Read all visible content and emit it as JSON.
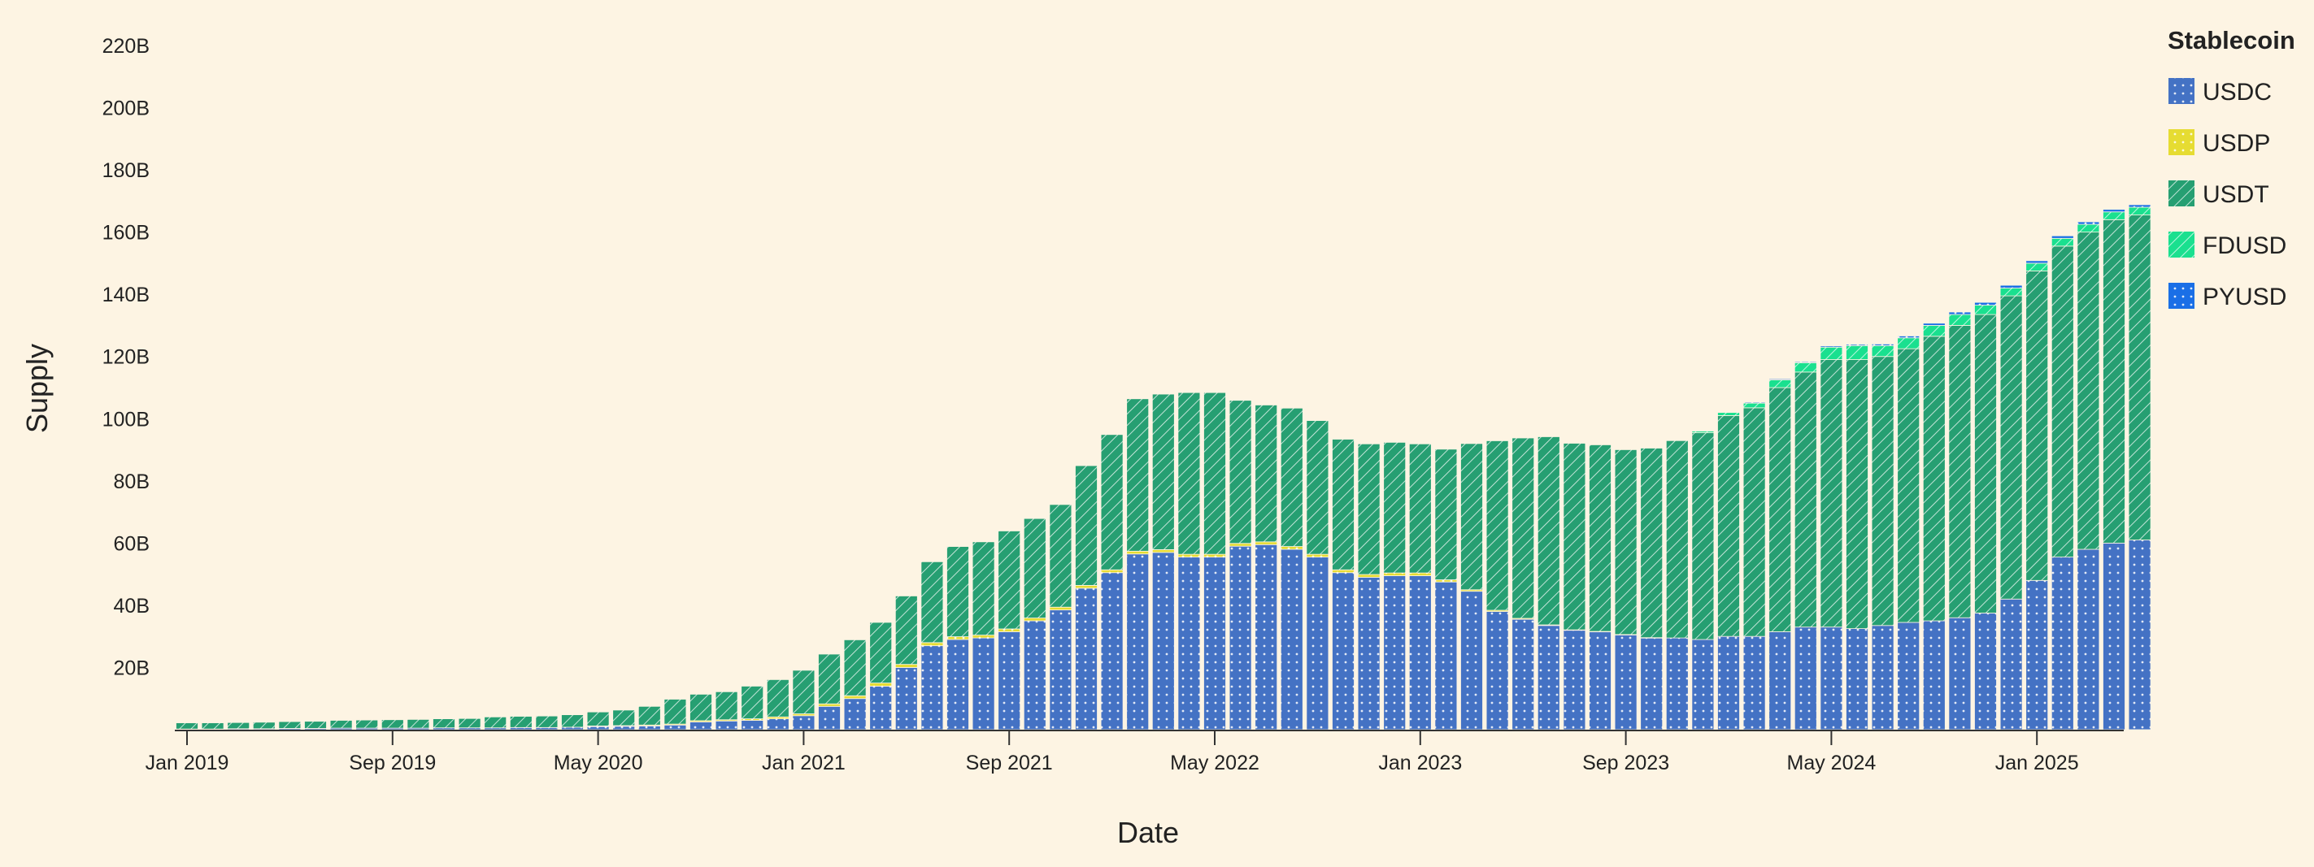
{
  "chart_data": {
    "type": "bar",
    "stacked": true,
    "xlabel": "Date",
    "ylabel": "Supply",
    "ylim": [
      0,
      220
    ],
    "y_ticks": [
      {
        "value": 20,
        "label": "20B"
      },
      {
        "value": 40,
        "label": "40B"
      },
      {
        "value": 60,
        "label": "60B"
      },
      {
        "value": 80,
        "label": "80B"
      },
      {
        "value": 100,
        "label": "100B"
      },
      {
        "value": 120,
        "label": "120B"
      },
      {
        "value": 140,
        "label": "140B"
      },
      {
        "value": 160,
        "label": "160B"
      },
      {
        "value": 180,
        "label": "180B"
      },
      {
        "value": 200,
        "label": "200B"
      },
      {
        "value": 220,
        "label": "220B"
      }
    ],
    "x_ticks": [
      {
        "date": "2019-01",
        "label": "Jan 2019"
      },
      {
        "date": "2019-09",
        "label": "Sep 2019"
      },
      {
        "date": "2020-05",
        "label": "May 2020"
      },
      {
        "date": "2021-01",
        "label": "Jan 2021"
      },
      {
        "date": "2021-09",
        "label": "Sep 2021"
      },
      {
        "date": "2022-05",
        "label": "May 2022"
      },
      {
        "date": "2023-01",
        "label": "Jan 2023"
      },
      {
        "date": "2023-09",
        "label": "Sep 2023"
      },
      {
        "date": "2024-05",
        "label": "May 2024"
      },
      {
        "date": "2025-01",
        "label": "Jan 2025"
      }
    ],
    "legend": {
      "title": "Stablecoin",
      "position": "right",
      "items": [
        {
          "name": "USDC",
          "color": "#4472c4",
          "pattern": "dots"
        },
        {
          "name": "USDP",
          "color": "#e6dc32",
          "pattern": "dots"
        },
        {
          "name": "USDT",
          "color": "#269f72",
          "pattern": "hatch"
        },
        {
          "name": "FDUSD",
          "color": "#1ae08f",
          "pattern": "hatch"
        },
        {
          "name": "PYUSD",
          "color": "#1a6fe6",
          "pattern": "dots"
        }
      ]
    },
    "categories": [
      "2019-01",
      "2019-02",
      "2019-03",
      "2019-04",
      "2019-05",
      "2019-06",
      "2019-07",
      "2019-08",
      "2019-09",
      "2019-10",
      "2019-11",
      "2019-12",
      "2020-01",
      "2020-02",
      "2020-03",
      "2020-04",
      "2020-05",
      "2020-06",
      "2020-07",
      "2020-08",
      "2020-09",
      "2020-10",
      "2020-11",
      "2020-12",
      "2021-01",
      "2021-02",
      "2021-03",
      "2021-04",
      "2021-05",
      "2021-06",
      "2021-07",
      "2021-08",
      "2021-09",
      "2021-10",
      "2021-11",
      "2021-12",
      "2022-01",
      "2022-02",
      "2022-03",
      "2022-04",
      "2022-05",
      "2022-06",
      "2022-07",
      "2022-08",
      "2022-09",
      "2022-10",
      "2022-11",
      "2022-12",
      "2023-01",
      "2023-02",
      "2023-03",
      "2023-04",
      "2023-05",
      "2023-06",
      "2023-07",
      "2023-08",
      "2023-09",
      "2023-10",
      "2023-11",
      "2023-12",
      "2024-01",
      "2024-02",
      "2024-03",
      "2024-04",
      "2024-05",
      "2024-06",
      "2024-07",
      "2024-08",
      "2024-09",
      "2024-10",
      "2024-11",
      "2024-12",
      "2025-01",
      "2025-02",
      "2025-03",
      "2025-04",
      "2025-05"
    ],
    "series": [
      {
        "name": "USDC",
        "values": [
          0.2,
          0.2,
          0.3,
          0.3,
          0.4,
          0.4,
          0.5,
          0.5,
          0.5,
          0.5,
          0.6,
          0.6,
          0.6,
          0.7,
          0.7,
          0.8,
          1.0,
          1.1,
          1.2,
          1.5,
          2.5,
          2.8,
          3.0,
          3.5,
          4.5,
          7.5,
          10.0,
          14.0,
          20.0,
          27.0,
          29.0,
          29.5,
          31.5,
          35.0,
          38.5,
          45.5,
          50.5,
          56.5,
          57.0,
          55.5,
          55.5,
          59.0,
          59.5,
          58.0,
          55.5,
          50.5,
          49.0,
          49.5,
          49.5,
          47.5,
          44.5,
          38.0,
          35.5,
          33.5,
          32.0,
          31.5,
          30.5,
          29.5,
          29.5,
          29.0,
          30.0,
          30.0,
          31.5,
          33.0,
          33.0,
          32.5,
          33.5,
          34.5,
          35.0,
          36.0,
          37.5,
          42.0,
          48.0,
          55.5,
          58.0,
          60.0,
          61.0
        ]
      },
      {
        "name": "USDP",
        "values": [
          0,
          0,
          0,
          0,
          0,
          0,
          0,
          0,
          0,
          0,
          0,
          0,
          0,
          0,
          0,
          0,
          0.2,
          0.2,
          0.3,
          0.3,
          0.4,
          0.4,
          0.5,
          0.6,
          0.6,
          0.8,
          0.9,
          1.0,
          1.0,
          1.0,
          0.9,
          0.9,
          0.9,
          0.9,
          0.9,
          0.9,
          0.9,
          0.9,
          0.9,
          0.9,
          0.9,
          0.9,
          0.9,
          0.9,
          0.9,
          0.9,
          0.9,
          0.9,
          0.9,
          0.7,
          0.5,
          0.4,
          0.3,
          0.2,
          0.1,
          0.1,
          0.1,
          0.1,
          0,
          0,
          0,
          0,
          0,
          0,
          0,
          0,
          0,
          0,
          0,
          0,
          0,
          0,
          0,
          0,
          0,
          0,
          0
        ]
      },
      {
        "name": "USDT",
        "values": [
          2.0,
          2.0,
          2.0,
          2.1,
          2.2,
          2.3,
          2.5,
          2.6,
          2.7,
          2.8,
          2.9,
          3.0,
          3.5,
          3.6,
          3.7,
          4.0,
          4.5,
          5.0,
          6.0,
          8.0,
          8.5,
          9.0,
          10.5,
          12.0,
          14.0,
          16.0,
          18.0,
          19.5,
          22.0,
          26.0,
          29.0,
          30.0,
          31.5,
          32.0,
          33.0,
          38.5,
          43.5,
          49.0,
          50.0,
          52.0,
          52.0,
          46.0,
          44.0,
          44.5,
          43.0,
          42.0,
          42.0,
          42.0,
          41.5,
          42.0,
          47.0,
          54.5,
          58.0,
          60.5,
          60.0,
          60.0,
          59.5,
          61.0,
          63.5,
          66.5,
          71.0,
          73.5,
          78.5,
          82.0,
          86.0,
          86.5,
          86.5,
          88.0,
          91.5,
          94.0,
          96.0,
          97.5,
          99.5,
          100.0,
          102.0,
          104.0,
          104.5
        ]
      },
      {
        "name": "FDUSD",
        "values": [
          0,
          0,
          0,
          0,
          0,
          0,
          0,
          0,
          0,
          0,
          0,
          0,
          0,
          0,
          0,
          0,
          0,
          0,
          0,
          0,
          0,
          0,
          0,
          0,
          0,
          0,
          0,
          0,
          0,
          0,
          0,
          0,
          0,
          0,
          0,
          0,
          0,
          0,
          0,
          0,
          0,
          0,
          0,
          0,
          0,
          0,
          0,
          0,
          0,
          0,
          0,
          0,
          0,
          0,
          0,
          0,
          0,
          0,
          0,
          0.5,
          1.0,
          1.5,
          2.5,
          3.0,
          4.0,
          4.5,
          3.5,
          3.5,
          3.5,
          3.5,
          3.0,
          2.5,
          2.5,
          2.5,
          2.5,
          2.5,
          2.5
        ]
      },
      {
        "name": "PYUSD",
        "values": [
          0,
          0,
          0,
          0,
          0,
          0,
          0,
          0,
          0,
          0,
          0,
          0,
          0,
          0,
          0,
          0,
          0,
          0,
          0,
          0,
          0,
          0,
          0,
          0,
          0,
          0,
          0,
          0,
          0,
          0,
          0,
          0,
          0,
          0,
          0,
          0,
          0,
          0,
          0,
          0,
          0,
          0,
          0,
          0,
          0,
          0,
          0,
          0,
          0,
          0,
          0,
          0,
          0,
          0,
          0,
          0,
          0.1,
          0.1,
          0.1,
          0.2,
          0.2,
          0.3,
          0.3,
          0.3,
          0.4,
          0.4,
          0.5,
          0.6,
          0.7,
          0.8,
          0.9,
          0.9,
          0.8,
          0.8,
          0.8,
          0.8,
          0.8
        ]
      }
    ]
  }
}
